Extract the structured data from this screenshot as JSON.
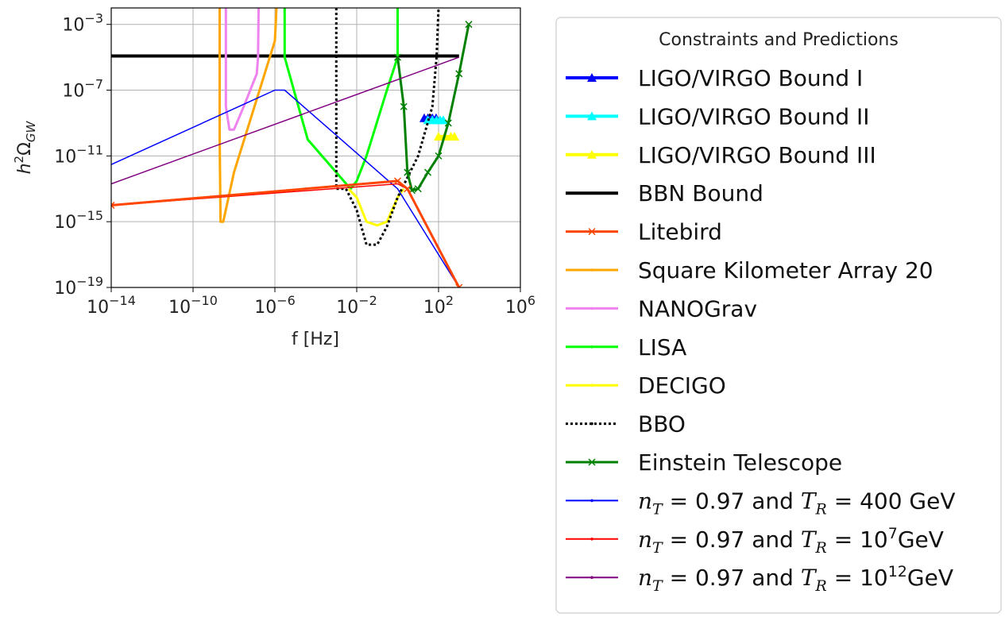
{
  "chart_data": {
    "type": "line",
    "title": "",
    "xlabel": "f [Hz]",
    "ylabel": "h²Ω_GW",
    "x_scale": "log",
    "y_scale": "log",
    "xlim": [
      1e-14,
      1000000.0
    ],
    "ylim": [
      1e-19,
      0.01
    ],
    "x_ticks": [
      1e-14,
      1e-10,
      1e-06,
      0.01,
      100.0,
      1000000.0
    ],
    "y_ticks": [
      1e-19,
      1e-15,
      1e-11,
      1e-07,
      0.001
    ],
    "x_tick_labels": [
      {
        "base": "10",
        "exp": "−14"
      },
      {
        "base": "10",
        "exp": "−10"
      },
      {
        "base": "10",
        "exp": "−6"
      },
      {
        "base": "10",
        "exp": "−2"
      },
      {
        "base": "10",
        "exp": "2"
      },
      {
        "base": "10",
        "exp": "6"
      }
    ],
    "y_tick_labels": [
      {
        "base": "10",
        "exp": "−19"
      },
      {
        "base": "10",
        "exp": "−15"
      },
      {
        "base": "10",
        "exp": "−11"
      },
      {
        "base": "10",
        "exp": "−7"
      },
      {
        "base": "10",
        "exp": "−3"
      }
    ],
    "grid": true,
    "legend_title": "Constraints and Predictions",
    "legend_placement": "outside-right",
    "series": [
      {
        "name": "LIGO/VIRGO Bound I",
        "color": "#0000ff",
        "width": 4,
        "marker": "triangle",
        "points": [
          [
            20,
            2e-09
          ],
          [
            30,
            2e-09
          ],
          [
            50,
            2e-09
          ],
          [
            76,
            2e-09
          ]
        ]
      },
      {
        "name": "LIGO/VIRGO Bound II",
        "color": "#00ffff",
        "width": 4,
        "marker": "triangle",
        "points": [
          [
            30,
            1.5e-09
          ],
          [
            50,
            1.5e-09
          ],
          [
            80,
            1.5e-09
          ],
          [
            120,
            1.5e-09
          ],
          [
            170,
            1.5e-09
          ]
        ]
      },
      {
        "name": "LIGO/VIRGO Bound III",
        "color": "#ffff00",
        "width": 4,
        "marker": "triangle",
        "points": [
          [
            100,
            1.5e-10
          ],
          [
            200,
            1.5e-10
          ],
          [
            400,
            1.5e-10
          ],
          [
            600,
            1.5e-10
          ]
        ]
      },
      {
        "name": "BBN Bound",
        "color": "#000000",
        "width": 4,
        "marker": "dot",
        "points": [
          [
            1e-14,
            1.2e-05
          ],
          [
            1000,
            1.2e-05
          ]
        ]
      },
      {
        "name": "Litebird",
        "color": "#ff4500",
        "width": 3,
        "marker": "x",
        "points": []
      },
      {
        "name": "Square Kilometer Array 20",
        "color": "#ffa500",
        "width": 3,
        "marker": "dot",
        "points": [
          [
            2e-09,
            0.01
          ],
          [
            2e-09,
            1e-10
          ],
          [
            2.2e-09,
            1e-15
          ],
          [
            3e-09,
            1e-15
          ],
          [
            1e-08,
            1e-12
          ],
          [
            1e-07,
            1e-08
          ],
          [
            1e-06,
            0.0001
          ],
          [
            1.2e-06,
            0.01
          ]
        ]
      },
      {
        "name": "NANOGrav",
        "color": "#ee82ee",
        "width": 3,
        "marker": "dot",
        "points": [
          [
            4e-09,
            0.01
          ],
          [
            4e-09,
            1e-08
          ],
          [
            6e-09,
            4e-10
          ],
          [
            1e-08,
            4e-10
          ],
          [
            3e-08,
            1e-08
          ],
          [
            1.3e-07,
            1e-06
          ],
          [
            1.5e-07,
            1e-05
          ],
          [
            1.6e-07,
            0.01
          ]
        ]
      },
      {
        "name": "LISA",
        "color": "#00ff00",
        "width": 3,
        "marker": "dot",
        "points": [
          [
            3e-06,
            0.01
          ],
          [
            3e-06,
            1e-05
          ],
          [
            4e-05,
            1e-10
          ],
          [
            0.001,
            1e-12
          ],
          [
            0.005,
            1e-13
          ],
          [
            0.01,
            3e-13
          ],
          [
            0.03,
            1e-11
          ],
          [
            0.3,
            1e-07
          ],
          [
            1,
            1e-05
          ],
          [
            1,
            0.01
          ]
        ]
      },
      {
        "name": "DECIGO",
        "color": "#ffff00",
        "width": 3,
        "marker": "dot",
        "points": [
          [
            0.004,
            1e-13
          ],
          [
            0.01,
            3e-14
          ],
          [
            0.03,
            1e-15
          ],
          [
            0.1,
            6e-16
          ],
          [
            0.3,
            1e-15
          ],
          [
            1,
            3e-14
          ],
          [
            2,
            1e-13
          ]
        ]
      },
      {
        "name": "BBO",
        "color": "#000000",
        "width": 3,
        "dash": "3,3",
        "marker": "dot",
        "points": [
          [
            0.001,
            0.01
          ],
          [
            0.001,
            1e-13
          ],
          [
            0.003,
            1e-13
          ],
          [
            0.01,
            5e-15
          ],
          [
            0.03,
            4e-17
          ],
          [
            0.1,
            4e-17
          ],
          [
            0.3,
            5e-16
          ],
          [
            1,
            3e-14
          ],
          [
            10,
            1e-11
          ],
          [
            50,
            1e-08
          ],
          [
            80,
            1e-05
          ],
          [
            100,
            0.01
          ]
        ]
      },
      {
        "name": "Einstein Telescope",
        "color": "#008000",
        "width": 3,
        "marker": "x",
        "points": [
          [
            1,
            1e-05
          ],
          [
            2,
            1e-08
          ],
          [
            3,
            1e-12
          ],
          [
            5,
            8e-14
          ],
          [
            10,
            1e-13
          ],
          [
            30,
            1e-12
          ],
          [
            100,
            1e-11
          ],
          [
            300,
            1e-09
          ],
          [
            1000,
            1e-06
          ],
          [
            3000,
            0.001
          ]
        ]
      },
      {
        "name": "n_T = 0.97 and T_R = 400 GeV",
        "color": "#0000ff",
        "width": 1.5,
        "marker": "dot",
        "points": [
          [
            1e-14,
            3e-12
          ],
          [
            1e-06,
            1e-07
          ],
          [
            3e-06,
            1e-07
          ],
          [
            1,
            1e-13
          ],
          [
            1000,
            1e-19
          ]
        ],
        "legend": {
          "parts": [
            {
              "t": "n",
              "i": true
            },
            {
              "t": "T",
              "sub": true,
              "i": true
            },
            {
              "t": " = 0.97 and "
            },
            {
              "t": "T",
              "i": true
            },
            {
              "t": "R",
              "sub": true,
              "i": true
            },
            {
              "t": " = 400 GeV"
            }
          ]
        }
      },
      {
        "name": "n_T = 0.97 and T_R = 10^7 GeV",
        "color": "#ff0000",
        "width": 1.5,
        "marker": "dot",
        "points": [
          [
            1e-14,
            1e-14
          ],
          [
            1,
            2e-13
          ],
          [
            3,
            1e-13
          ],
          [
            1000,
            1e-19
          ]
        ],
        "legend": {
          "parts": [
            {
              "t": "n",
              "i": true
            },
            {
              "t": "T",
              "sub": true,
              "i": true
            },
            {
              "t": " = 0.97 and "
            },
            {
              "t": "T",
              "i": true
            },
            {
              "t": "R",
              "sub": true,
              "i": true
            },
            {
              "t": " = 10"
            },
            {
              "t": "7",
              "sup": true
            },
            {
              "t": "GeV"
            }
          ]
        }
      },
      {
        "name": "n_T = 0.97 and T_R = 10^12 GeV",
        "color": "#800080",
        "width": 1.5,
        "marker": "dot",
        "points": [
          [
            1e-14,
            2e-13
          ],
          [
            1000,
            1e-05
          ]
        ],
        "legend": {
          "parts": [
            {
              "t": "n",
              "i": true
            },
            {
              "t": "T",
              "sub": true,
              "i": true
            },
            {
              "t": " = 0.97 and "
            },
            {
              "t": "T",
              "i": true
            },
            {
              "t": "R",
              "sub": true,
              "i": true
            },
            {
              "t": " = 10"
            },
            {
              "t": "12",
              "sup": true
            },
            {
              "t": "GeV"
            }
          ]
        }
      }
    ],
    "litebird_points": [
      [
        1e-14,
        1e-14
      ],
      [
        1,
        3e-13
      ],
      [
        3,
        1e-13
      ],
      [
        1000,
        1e-19
      ]
    ]
  }
}
